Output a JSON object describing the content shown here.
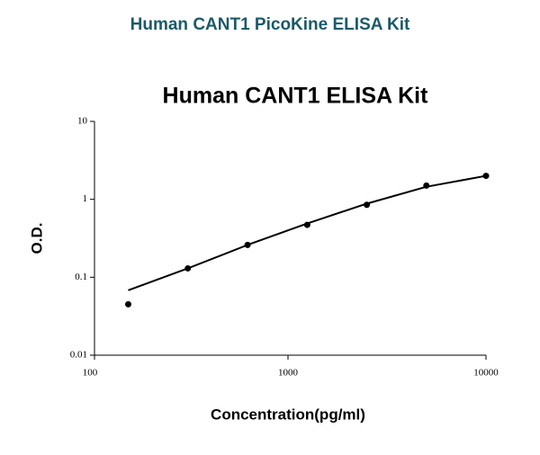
{
  "header": {
    "title": "Human CANT1 PicoKine ELISA Kit"
  },
  "chart_data": {
    "type": "scatter",
    "title": "Human CANT1 ELISA Kit",
    "x_label": "Concentration(pg/ml)",
    "y_label": "O.D.",
    "log_x": true,
    "log_y": true,
    "color": "#000000",
    "x": [
      156,
      312,
      625,
      1250,
      2500,
      5000,
      10000
    ],
    "values": [
      0.045,
      0.13,
      0.26,
      0.47,
      0.85,
      1.5,
      2.0
    ],
    "fit": {
      "x": [
        156,
        312,
        625,
        1250,
        2500,
        5000,
        10000
      ],
      "values": [
        0.068,
        0.13,
        0.26,
        0.49,
        0.88,
        1.45,
        2.0
      ]
    },
    "xlim": [
      100,
      10000
    ],
    "xticks": [
      100,
      1000,
      10000
    ],
    "ylim": [
      0.01,
      10
    ],
    "yticks": [
      0.01,
      0.1,
      1,
      10
    ]
  }
}
